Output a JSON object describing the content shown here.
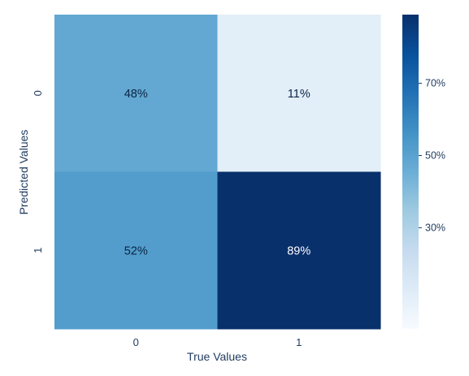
{
  "chart_data": {
    "type": "heatmap",
    "x_categories": [
      "0",
      "1"
    ],
    "y_categories": [
      "0",
      "1"
    ],
    "values": [
      [
        48,
        11
      ],
      [
        52,
        89
      ]
    ],
    "value_labels": [
      [
        "48%",
        "11%"
      ],
      [
        "52%",
        "89%"
      ]
    ],
    "xlabel": "True Values",
    "ylabel": "Predicted Values",
    "colormap": "Blues",
    "colorbar": {
      "range": [
        2,
        89
      ],
      "ticks": [
        30,
        50,
        70
      ],
      "tick_labels": [
        "30%",
        "50%",
        "70%"
      ]
    },
    "grid": false
  }
}
